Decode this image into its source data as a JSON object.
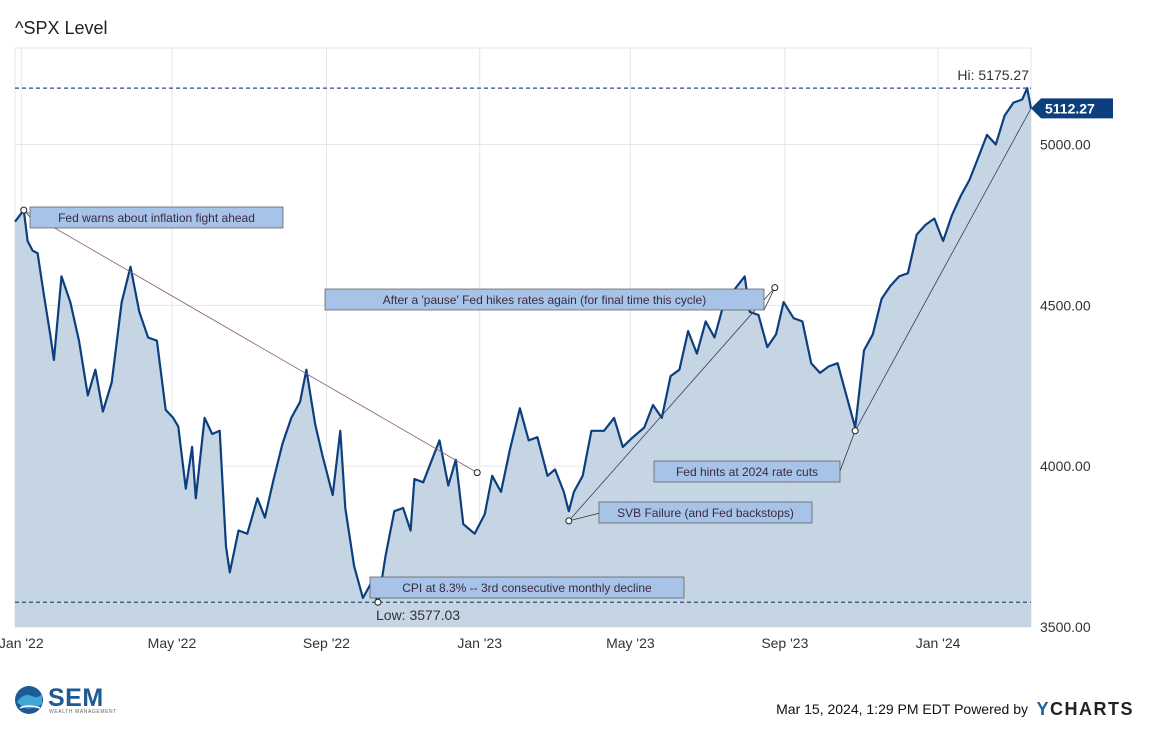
{
  "title": "^SPX Level",
  "footer": {
    "timestamp": "Mar 15, 2024, 1:29 PM EDT Powered by",
    "brand_y": "Y",
    "brand_rest": "CHARTS"
  },
  "logo": {
    "name": "SEM",
    "subtitle": "WEALTH MANAGEMENT"
  },
  "chart_data": {
    "type": "area",
    "title": "^SPX Level",
    "xlabel": "",
    "ylabel": "",
    "ylim": [
      3500,
      5300
    ],
    "xlim": [
      "2021-12-27",
      "2024-03-15"
    ],
    "y_ticks": [
      3500,
      4000,
      4500,
      5000
    ],
    "y_tick_labels": [
      "3500.00",
      "4000.00",
      "4500.00",
      "5000.00"
    ],
    "x_ticks": [
      {
        "date": "2022-01-01",
        "label": "Jan '22"
      },
      {
        "date": "2022-05-01",
        "label": "May '22"
      },
      {
        "date": "2022-09-01",
        "label": "Sep '22"
      },
      {
        "date": "2023-01-01",
        "label": "Jan '23"
      },
      {
        "date": "2023-05-01",
        "label": "May '23"
      },
      {
        "date": "2023-09-01",
        "label": "Sep '23"
      },
      {
        "date": "2024-01-01",
        "label": "Jan '24"
      }
    ],
    "grid": true,
    "high": {
      "label": "Hi: 5175.27",
      "value": 5175.27
    },
    "low": {
      "label": "Low: 3577.03",
      "value": 3577.03
    },
    "last": {
      "label": "5112.27",
      "value": 5112.27
    },
    "colors": {
      "line": "#0d3f7f",
      "fill": "#c3d3e2",
      "annotation_fill": "#a8c3e8",
      "last_badge": "#0d3f7f"
    },
    "series": [
      {
        "x": [
          "2021-12-27",
          "2022-01-03",
          "2022-01-06",
          "2022-01-10",
          "2022-01-14",
          "2022-01-19",
          "2022-01-24",
          "2022-01-27",
          "2022-02-02",
          "2022-02-09",
          "2022-02-16",
          "2022-02-23",
          "2022-03-01",
          "2022-03-07",
          "2022-03-14",
          "2022-03-22",
          "2022-03-29",
          "2022-04-05",
          "2022-04-12",
          "2022-04-19",
          "2022-04-26",
          "2022-05-02",
          "2022-05-06",
          "2022-05-12",
          "2022-05-17",
          "2022-05-20",
          "2022-05-27",
          "2022-06-02",
          "2022-06-08",
          "2022-06-13",
          "2022-06-16",
          "2022-06-23",
          "2022-06-30",
          "2022-07-08",
          "2022-07-14",
          "2022-07-21",
          "2022-07-28",
          "2022-08-04",
          "2022-08-11",
          "2022-08-16",
          "2022-08-23",
          "2022-08-29",
          "2022-09-06",
          "2022-09-12",
          "2022-09-16",
          "2022-09-23",
          "2022-09-30",
          "2022-10-07",
          "2022-10-12",
          "2022-10-18",
          "2022-10-25",
          "2022-11-01",
          "2022-11-07",
          "2022-11-10",
          "2022-11-17",
          "2022-11-25",
          "2022-11-30",
          "2022-12-07",
          "2022-12-13",
          "2022-12-19",
          "2022-12-28",
          "2023-01-05",
          "2023-01-11",
          "2023-01-18",
          "2023-01-25",
          "2023-02-02",
          "2023-02-09",
          "2023-02-16",
          "2023-02-24",
          "2023-03-02",
          "2023-03-09",
          "2023-03-13",
          "2023-03-17",
          "2023-03-24",
          "2023-03-31",
          "2023-04-10",
          "2023-04-18",
          "2023-04-25",
          "2023-05-03",
          "2023-05-12",
          "2023-05-19",
          "2023-05-26",
          "2023-06-02",
          "2023-06-09",
          "2023-06-16",
          "2023-06-23",
          "2023-06-30",
          "2023-07-07",
          "2023-07-14",
          "2023-07-21",
          "2023-07-31",
          "2023-08-04",
          "2023-08-11",
          "2023-08-18",
          "2023-08-25",
          "2023-08-31",
          "2023-09-08",
          "2023-09-15",
          "2023-09-22",
          "2023-09-29",
          "2023-10-06",
          "2023-10-13",
          "2023-10-20",
          "2023-10-27",
          "2023-11-03",
          "2023-11-10",
          "2023-11-17",
          "2023-11-24",
          "2023-12-01",
          "2023-12-08",
          "2023-12-15",
          "2023-12-22",
          "2023-12-29",
          "2024-01-05",
          "2024-01-12",
          "2024-01-19",
          "2024-01-26",
          "2024-02-02",
          "2024-02-09",
          "2024-02-16",
          "2024-02-23",
          "2024-03-01",
          "2024-03-08",
          "2024-03-12",
          "2024-03-15"
        ],
        "y": [
          4760,
          4796,
          4700,
          4670,
          4662,
          4532,
          4410,
          4330,
          4590,
          4510,
          4390,
          4220,
          4300,
          4170,
          4260,
          4510,
          4620,
          4480,
          4400,
          4390,
          4175,
          4150,
          4123,
          3930,
          4060,
          3900,
          4150,
          4100,
          4110,
          3750,
          3670,
          3800,
          3790,
          3900,
          3840,
          3960,
          4070,
          4150,
          4200,
          4300,
          4130,
          4030,
          3910,
          4110,
          3870,
          3690,
          3590,
          3640,
          3570,
          3720,
          3860,
          3870,
          3800,
          3960,
          3950,
          4030,
          4080,
          3940,
          4020,
          3820,
          3790,
          3850,
          3970,
          3920,
          4050,
          4180,
          4080,
          4090,
          3970,
          3990,
          3920,
          3860,
          3920,
          3970,
          4110,
          4110,
          4150,
          4060,
          4090,
          4120,
          4190,
          4150,
          4280,
          4300,
          4420,
          4350,
          4450,
          4400,
          4500,
          4540,
          4590,
          4480,
          4470,
          4370,
          4410,
          4510,
          4460,
          4450,
          4320,
          4290,
          4310,
          4320,
          4220,
          4120,
          4360,
          4410,
          4520,
          4560,
          4590,
          4600,
          4720,
          4750,
          4770,
          4700,
          4780,
          4840,
          4890,
          4960,
          5030,
          5000,
          5090,
          5130,
          5140,
          5175,
          5112
        ]
      }
    ],
    "annotations": [
      {
        "text": "Fed warns about inflation fight ahead",
        "date": "2022-01-03",
        "value": 4796
      },
      {
        "text": "CPI at 8.3% -- 3rd consecutive monthly decline",
        "date": "2022-10-12",
        "value": 3577.03
      },
      {
        "text": "After a 'pause' Fed hikes rates again (for final time this cycle)",
        "date": "2023-08-24",
        "value": 4555
      },
      {
        "text": "Fed hints at 2024 rate cuts",
        "date": "2023-10-27",
        "value": 4110
      },
      {
        "text": "SVB Failure (and Fed backstops)",
        "date": "2023-03-13",
        "value": 3830
      },
      {
        "text": "",
        "date": "2022-12-30",
        "value": 3980
      }
    ]
  }
}
